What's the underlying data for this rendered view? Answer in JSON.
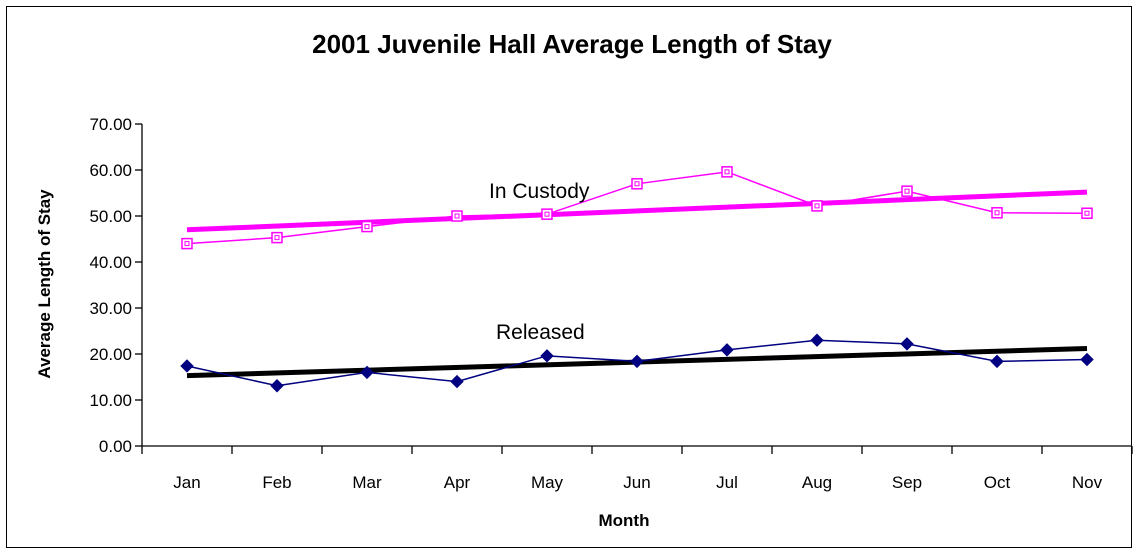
{
  "chart_data": {
    "type": "line",
    "title": "2001 Juvenile Hall Average Length of Stay",
    "xlabel": "Month",
    "ylabel": "Average Length of Stay",
    "categories": [
      "Jan",
      "Feb",
      "Mar",
      "Apr",
      "May",
      "Jun",
      "Jul",
      "Aug",
      "Sep",
      "Oct",
      "Nov"
    ],
    "ylim": [
      0,
      70
    ],
    "yticks": [
      "0.00",
      "10.00",
      "20.00",
      "30.00",
      "40.00",
      "50.00",
      "60.00",
      "70.00"
    ],
    "grid": false,
    "legend": "none",
    "series": [
      {
        "name": "In Custody",
        "values": [
          44.0,
          45.3,
          47.7,
          50.0,
          50.4,
          57.0,
          59.6,
          52.2,
          55.4,
          50.7,
          50.6
        ],
        "color": "#ff00ff",
        "marker": "square-open",
        "trendline": [
          47.0,
          55.2
        ],
        "trendline_color": "#ff00ff"
      },
      {
        "name": "Released",
        "values": [
          17.4,
          13.1,
          16.0,
          14.0,
          19.6,
          18.4,
          20.9,
          23.0,
          22.2,
          18.4,
          18.8
        ],
        "color": "#000080",
        "marker": "diamond-filled",
        "trendline": [
          15.3,
          21.2
        ],
        "trendline_color": "#000000"
      }
    ]
  }
}
